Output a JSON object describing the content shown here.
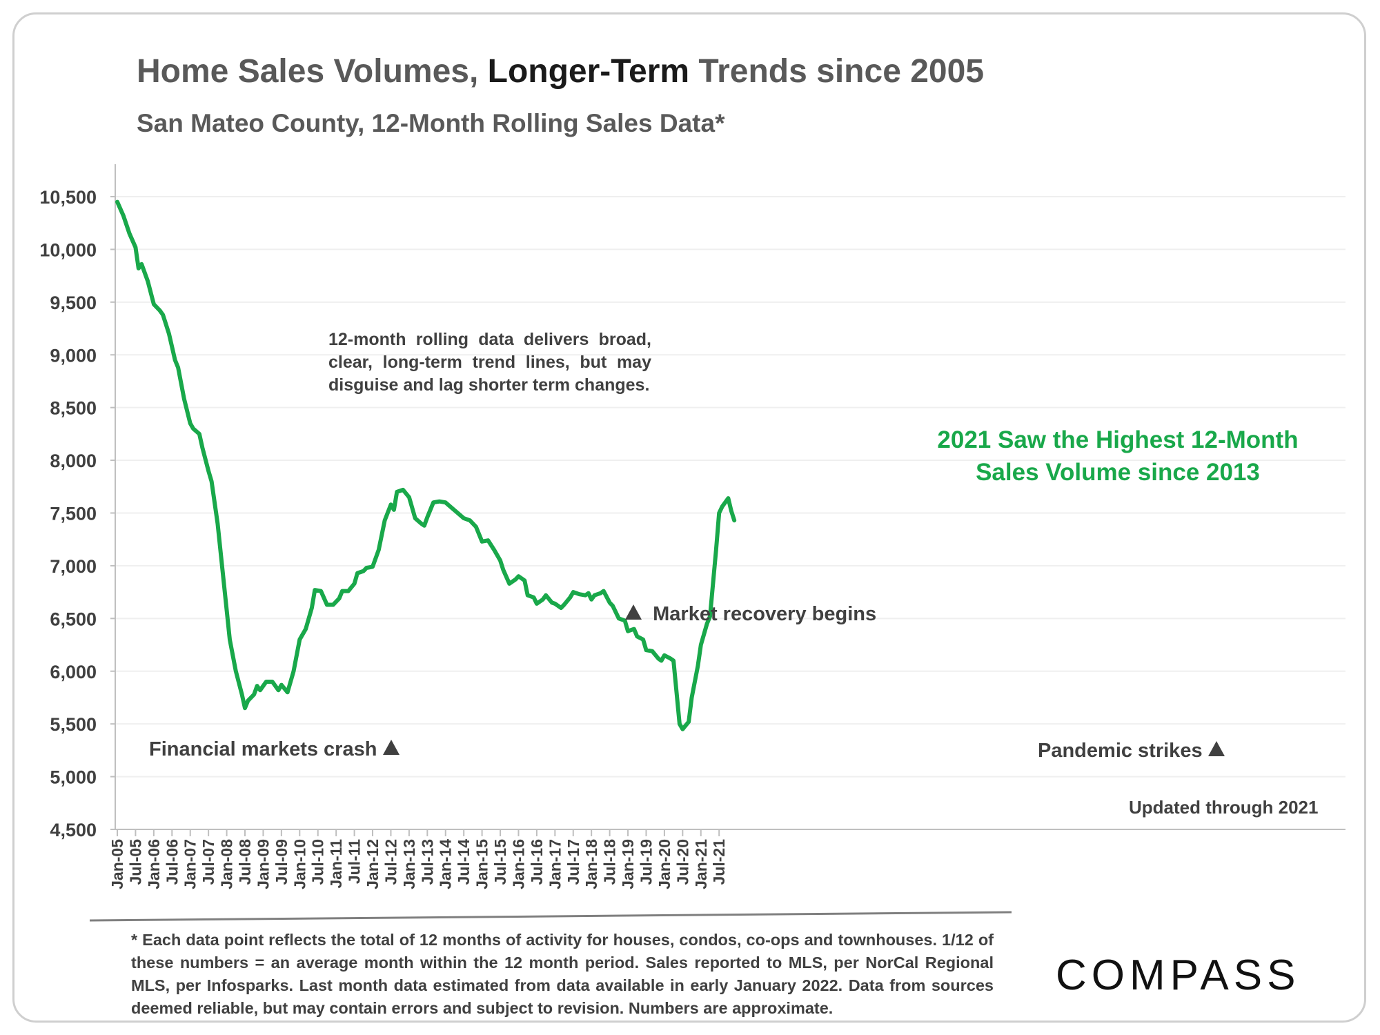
{
  "title": {
    "part1": "Home Sales Volumes, ",
    "part2": "Longer-Term",
    "part3": " Trends since 2005"
  },
  "subtitle": "San Mateo County, 12-Month Rolling Sales Data*",
  "note": "12-month rolling data delivers broad, clear, long-term trend lines, but may disguise and lag shorter term changes.",
  "highlight": {
    "line1": "2021 Saw the Highest 12-Month",
    "line2": "Sales Volume since 2013"
  },
  "annotations": {
    "crash": "Financial markets crash",
    "recovery": "Market recovery begins",
    "pandemic": "Pandemic strikes",
    "updated": "Updated through 2021"
  },
  "footnote": "* Each data point reflects the total of 12 months of activity for houses, condos, co-ops and townhouses. 1/12 of these numbers = an average month within the 12 month period. Sales reported to MLS, per NorCal Regional MLS, per Infosparks. Last month data estimated from data available in early January 2022. Data from sources deemed reliable, but may contain errors and subject to revision. Numbers are approximate.",
  "logo": "COMPASS",
  "colors": {
    "line": "#19a84a",
    "highlight_text": "#19a84a",
    "grid": "#efefef",
    "axis": "#bfbfbf"
  },
  "chart_data": {
    "type": "line",
    "ylim": [
      4500,
      10500
    ],
    "yticks": [
      "4,500",
      "5,000",
      "5,500",
      "6,000",
      "6,500",
      "7,000",
      "7,500",
      "8,000",
      "8,500",
      "9,000",
      "9,500",
      "10,000",
      "10,500"
    ],
    "xticks": [
      "Jan-05",
      "Jul-05",
      "Jan-06",
      "Jul-06",
      "Jan-07",
      "Jul-07",
      "Jan-08",
      "Jul-08",
      "Jan-09",
      "Jul-09",
      "Jan-10",
      "Jul-10",
      "Jan-11",
      "Jul-11",
      "Jan-12",
      "Jul-12",
      "Jan-13",
      "Jul-13",
      "Jan-14",
      "Jul-14",
      "Jan-15",
      "Jul-15",
      "Jan-16",
      "Jul-16",
      "Jan-17",
      "Jul-17",
      "Jan-18",
      "Jul-18",
      "Jan-19",
      "Jul-19",
      "Jan-20",
      "Jul-20",
      "Jan-21",
      "Jul-21"
    ],
    "grid": true,
    "series": [
      {
        "points": [
          [
            "Jan-05",
            10450
          ],
          [
            "Mar-05",
            10320
          ],
          [
            "May-05",
            10150
          ],
          [
            "Jul-05",
            10020
          ],
          [
            "Aug-05",
            9820
          ],
          [
            "Sep-05",
            9860
          ],
          [
            "Nov-05",
            9700
          ],
          [
            "Jan-06",
            9480
          ],
          [
            "Mar-06",
            9420
          ],
          [
            "Apr-06",
            9380
          ],
          [
            "Jun-06",
            9200
          ],
          [
            "Aug-06",
            8950
          ],
          [
            "Sep-06",
            8880
          ],
          [
            "Nov-06",
            8580
          ],
          [
            "Jan-07",
            8350
          ],
          [
            "Feb-07",
            8300
          ],
          [
            "Apr-07",
            8250
          ],
          [
            "May-07",
            8120
          ],
          [
            "Jul-07",
            7900
          ],
          [
            "Aug-07",
            7800
          ],
          [
            "Oct-07",
            7400
          ],
          [
            "Dec-07",
            6850
          ],
          [
            "Feb-08",
            6300
          ],
          [
            "Apr-08",
            6000
          ],
          [
            "Jun-08",
            5780
          ],
          [
            "Jul-08",
            5650
          ],
          [
            "Aug-08",
            5720
          ],
          [
            "Oct-08",
            5780
          ],
          [
            "Nov-08",
            5860
          ],
          [
            "Dec-08",
            5820
          ],
          [
            "Feb-09",
            5900
          ],
          [
            "Apr-09",
            5900
          ],
          [
            "Jun-09",
            5820
          ],
          [
            "Jul-09",
            5870
          ],
          [
            "Sep-09",
            5800
          ],
          [
            "Nov-09",
            6000
          ],
          [
            "Jan-10",
            6300
          ],
          [
            "Mar-10",
            6400
          ],
          [
            "May-10",
            6600
          ],
          [
            "Jun-10",
            6770
          ],
          [
            "Aug-10",
            6760
          ],
          [
            "Oct-10",
            6630
          ],
          [
            "Dec-10",
            6630
          ],
          [
            "Feb-11",
            6690
          ],
          [
            "Mar-11",
            6760
          ],
          [
            "May-11",
            6760
          ],
          [
            "Jul-11",
            6830
          ],
          [
            "Aug-11",
            6930
          ],
          [
            "Oct-11",
            6950
          ],
          [
            "Nov-11",
            6980
          ],
          [
            "Jan-12",
            6990
          ],
          [
            "Mar-12",
            7150
          ],
          [
            "May-12",
            7430
          ],
          [
            "Jul-12",
            7580
          ],
          [
            "Aug-12",
            7530
          ],
          [
            "Sep-12",
            7700
          ],
          [
            "Nov-12",
            7720
          ],
          [
            "Jan-13",
            7650
          ],
          [
            "Mar-13",
            7450
          ],
          [
            "May-13",
            7400
          ],
          [
            "Jun-13",
            7380
          ],
          [
            "Jul-13",
            7460
          ],
          [
            "Sep-13",
            7600
          ],
          [
            "Nov-13",
            7610
          ],
          [
            "Jan-14",
            7600
          ],
          [
            "Mar-14",
            7550
          ],
          [
            "May-14",
            7500
          ],
          [
            "Jul-14",
            7450
          ],
          [
            "Sep-14",
            7430
          ],
          [
            "Nov-14",
            7370
          ],
          [
            "Jan-15",
            7230
          ],
          [
            "Mar-15",
            7240
          ],
          [
            "May-15",
            7150
          ],
          [
            "Jul-15",
            7050
          ],
          [
            "Aug-15",
            6960
          ],
          [
            "Oct-15",
            6830
          ],
          [
            "Dec-15",
            6870
          ],
          [
            "Jan-16",
            6900
          ],
          [
            "Mar-16",
            6860
          ],
          [
            "Apr-16",
            6720
          ],
          [
            "Jun-16",
            6700
          ],
          [
            "Jul-16",
            6640
          ],
          [
            "Sep-16",
            6680
          ],
          [
            "Oct-16",
            6720
          ],
          [
            "Dec-16",
            6650
          ],
          [
            "Jan-17",
            6640
          ],
          [
            "Mar-17",
            6600
          ],
          [
            "Apr-17",
            6630
          ],
          [
            "Jun-17",
            6700
          ],
          [
            "Jul-17",
            6750
          ],
          [
            "Sep-17",
            6730
          ],
          [
            "Nov-17",
            6720
          ],
          [
            "Dec-17",
            6740
          ],
          [
            "Jan-18",
            6680
          ],
          [
            "Feb-18",
            6720
          ],
          [
            "Apr-18",
            6740
          ],
          [
            "May-18",
            6760
          ],
          [
            "Jul-18",
            6650
          ],
          [
            "Aug-18",
            6620
          ],
          [
            "Oct-18",
            6500
          ],
          [
            "Dec-18",
            6480
          ],
          [
            "Jan-19",
            6380
          ],
          [
            "Mar-19",
            6400
          ],
          [
            "Apr-19",
            6330
          ],
          [
            "Jun-19",
            6300
          ],
          [
            "Jul-19",
            6200
          ],
          [
            "Sep-19",
            6190
          ],
          [
            "Nov-19",
            6120
          ],
          [
            "Dec-19",
            6100
          ],
          [
            "Jan-20",
            6150
          ],
          [
            "Mar-20",
            6120
          ],
          [
            "Apr-20",
            6100
          ],
          [
            "May-20",
            5800
          ],
          [
            "Jun-20",
            5500
          ],
          [
            "Jul-20",
            5450
          ],
          [
            "Sep-20",
            5520
          ],
          [
            "Oct-20",
            5750
          ],
          [
            "Dec-20",
            6050
          ],
          [
            "Jan-21",
            6250
          ],
          [
            "Mar-21",
            6450
          ],
          [
            "Apr-21",
            6520
          ],
          [
            "Jun-21",
            7150
          ],
          [
            "Jul-21",
            7500
          ],
          [
            "Aug-21",
            7560
          ],
          [
            "Oct-21",
            7640
          ],
          [
            "Nov-21",
            7520
          ],
          [
            "Dec-21",
            7430
          ]
        ]
      }
    ]
  }
}
